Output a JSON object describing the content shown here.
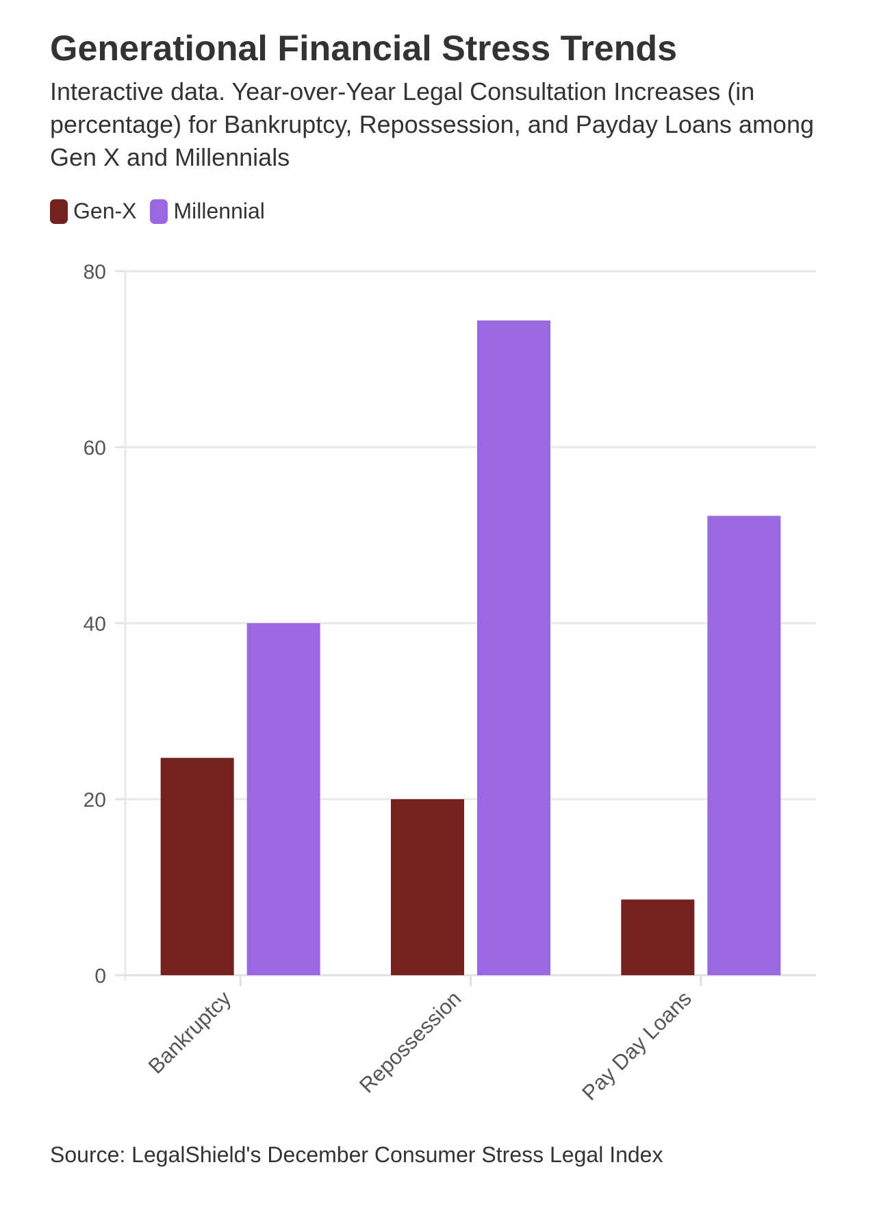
{
  "header": {
    "title": "Generational Financial Stress Trends",
    "subtitle": "Interactive data. Year-over-Year Legal Consultation Increases (in percentage) for Bankruptcy, Repossession, and Payday Loans among Gen X and Millennials"
  },
  "legend": {
    "items": [
      {
        "label": "Gen-X",
        "color": "#74221f"
      },
      {
        "label": "Millennial",
        "color": "#9a69e2"
      }
    ]
  },
  "source": "Source: LegalShield's December Consumer Stress Legal Index",
  "chart_data": {
    "type": "bar",
    "categories": [
      "Bankruptcy",
      "Repossession",
      "Pay Day Loans"
    ],
    "series": [
      {
        "name": "Gen-X",
        "values": [
          24.7,
          20.0,
          8.6
        ],
        "color": "#74221f"
      },
      {
        "name": "Millennial",
        "values": [
          40.0,
          74.4,
          52.2
        ],
        "color": "#9a69e2"
      }
    ],
    "ylim": [
      0,
      80
    ],
    "yticks": [
      "0",
      "20",
      "40",
      "60",
      "80"
    ],
    "grid": true,
    "legend_position": "top-left"
  }
}
